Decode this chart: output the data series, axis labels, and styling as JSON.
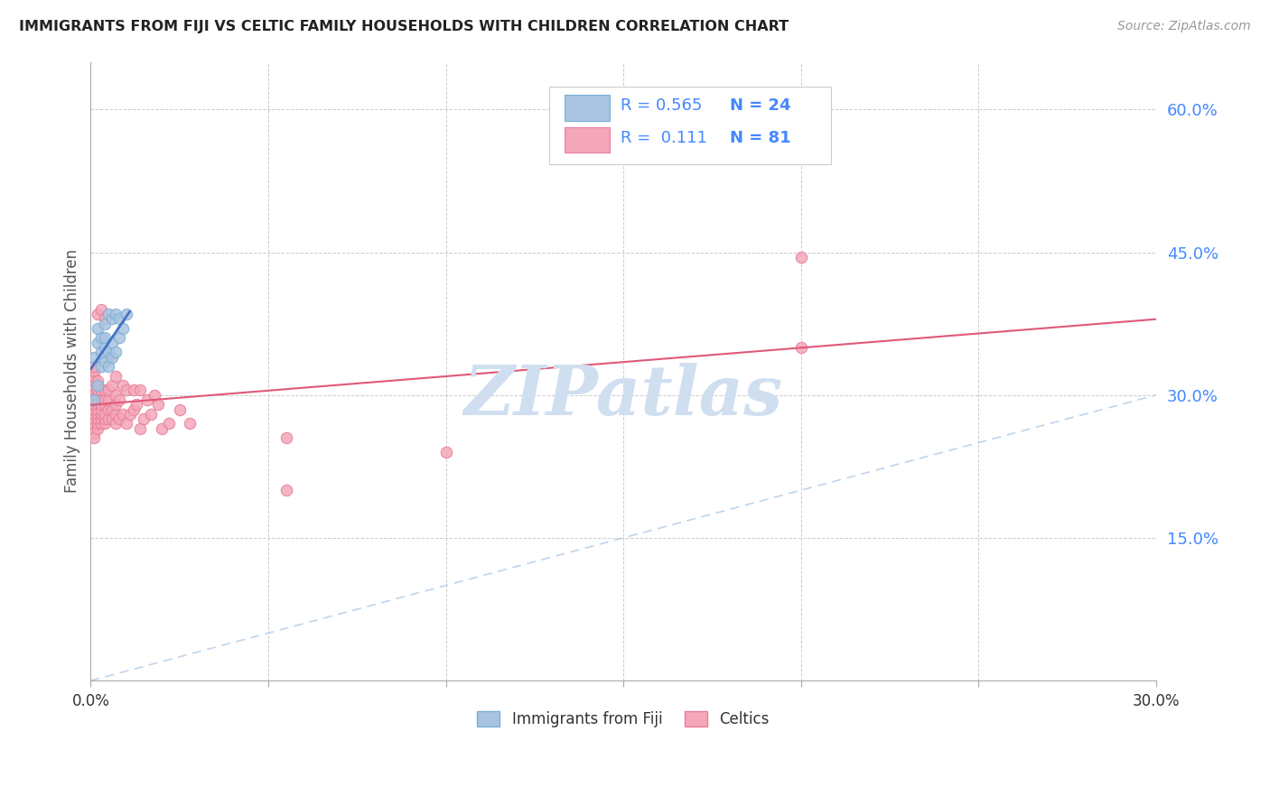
{
  "title": "IMMIGRANTS FROM FIJI VS CELTIC FAMILY HOUSEHOLDS WITH CHILDREN CORRELATION CHART",
  "source": "Source: ZipAtlas.com",
  "ylabel": "Family Households with Children",
  "legend_fiji_label": "Immigrants from Fiji",
  "legend_celtics_label": "Celtics",
  "fiji_R": "0.565",
  "fiji_N": "24",
  "celtics_R": "0.111",
  "celtics_N": "81",
  "xlim": [
    0.0,
    0.3
  ],
  "ylim": [
    0.0,
    0.65
  ],
  "xticks": [
    0.0,
    0.05,
    0.1,
    0.15,
    0.2,
    0.25,
    0.3
  ],
  "xtick_labels": [
    "0.0%",
    "",
    "",
    "",
    "",
    "",
    "30.0%"
  ],
  "yticks_right": [
    0.0,
    0.15,
    0.3,
    0.45,
    0.6
  ],
  "ytick_labels_right": [
    "",
    "15.0%",
    "30.0%",
    "45.0%",
    "60.0%"
  ],
  "background_color": "#ffffff",
  "scatter_fiji_color": "#a8c4e0",
  "scatter_fiji_edge": "#7bafd4",
  "scatter_celtics_color": "#f4a7b9",
  "scatter_celtics_edge": "#e87d9a",
  "fiji_line_color": "#4472c4",
  "celtics_line_color": "#e05878",
  "diagonal_color": "#b8d0e8",
  "grid_color": "#cccccc",
  "watermark_color": "#d0dff0",
  "fiji_scatter_x": [
    0.001,
    0.001,
    0.002,
    0.002,
    0.002,
    0.003,
    0.003,
    0.003,
    0.004,
    0.004,
    0.004,
    0.004,
    0.005,
    0.005,
    0.005,
    0.006,
    0.006,
    0.006,
    0.007,
    0.007,
    0.008,
    0.008,
    0.009,
    0.01
  ],
  "fiji_scatter_y": [
    0.295,
    0.34,
    0.31,
    0.355,
    0.37,
    0.33,
    0.345,
    0.36,
    0.335,
    0.35,
    0.36,
    0.375,
    0.33,
    0.345,
    0.385,
    0.34,
    0.355,
    0.38,
    0.345,
    0.385,
    0.36,
    0.38,
    0.37,
    0.385
  ],
  "celtics_scatter_x": [
    0.001,
    0.001,
    0.001,
    0.001,
    0.001,
    0.001,
    0.001,
    0.001,
    0.001,
    0.001,
    0.001,
    0.001,
    0.001,
    0.001,
    0.001,
    0.002,
    0.002,
    0.002,
    0.002,
    0.002,
    0.002,
    0.002,
    0.002,
    0.002,
    0.002,
    0.002,
    0.002,
    0.003,
    0.003,
    0.003,
    0.003,
    0.003,
    0.003,
    0.003,
    0.003,
    0.004,
    0.004,
    0.004,
    0.004,
    0.004,
    0.004,
    0.004,
    0.005,
    0.005,
    0.005,
    0.005,
    0.005,
    0.006,
    0.006,
    0.006,
    0.007,
    0.007,
    0.007,
    0.007,
    0.007,
    0.008,
    0.008,
    0.009,
    0.009,
    0.01,
    0.01,
    0.011,
    0.012,
    0.012,
    0.013,
    0.014,
    0.014,
    0.015,
    0.016,
    0.017,
    0.018,
    0.019,
    0.02,
    0.022,
    0.025,
    0.028,
    0.055,
    0.1,
    0.2,
    0.055,
    0.2
  ],
  "celtics_scatter_y": [
    0.27,
    0.275,
    0.28,
    0.285,
    0.29,
    0.295,
    0.3,
    0.305,
    0.31,
    0.315,
    0.32,
    0.325,
    0.33,
    0.26,
    0.255,
    0.265,
    0.27,
    0.275,
    0.28,
    0.285,
    0.29,
    0.295,
    0.3,
    0.305,
    0.31,
    0.315,
    0.385,
    0.27,
    0.275,
    0.28,
    0.285,
    0.29,
    0.295,
    0.305,
    0.39,
    0.27,
    0.275,
    0.28,
    0.29,
    0.295,
    0.305,
    0.38,
    0.275,
    0.285,
    0.295,
    0.305,
    0.34,
    0.275,
    0.285,
    0.31,
    0.27,
    0.28,
    0.29,
    0.3,
    0.32,
    0.275,
    0.295,
    0.28,
    0.31,
    0.27,
    0.305,
    0.28,
    0.285,
    0.305,
    0.29,
    0.265,
    0.305,
    0.275,
    0.295,
    0.28,
    0.3,
    0.29,
    0.265,
    0.27,
    0.285,
    0.27,
    0.2,
    0.24,
    0.445,
    0.255,
    0.35
  ]
}
